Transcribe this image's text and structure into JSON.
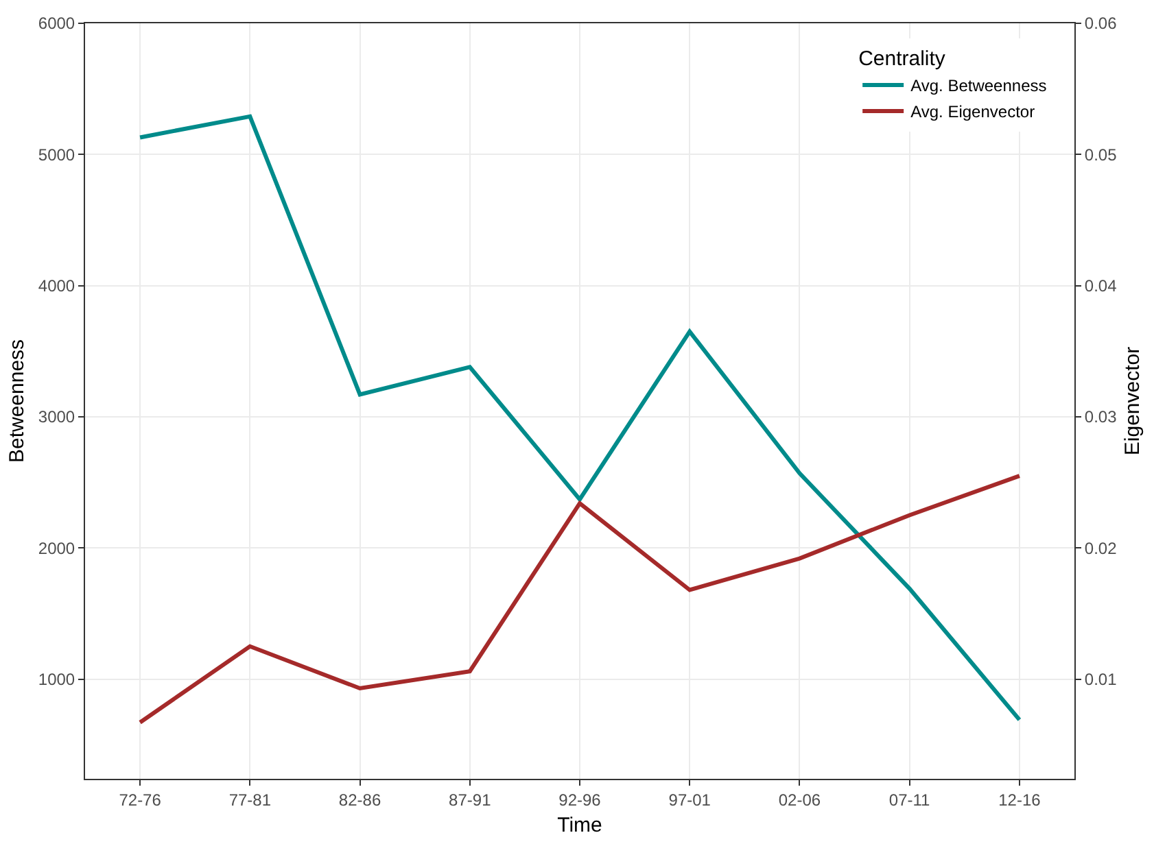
{
  "chart_data": {
    "type": "line",
    "xlabel": "Time",
    "ylabel": "Betweenness",
    "y2label": "Eigenvector",
    "legend_title": "Centrality",
    "categories": [
      "72-76",
      "77-81",
      "82-86",
      "87-91",
      "92-96",
      "97-01",
      "02-06",
      "07-11",
      "12-16"
    ],
    "series": [
      {
        "name": "Avg. Betweenness",
        "color": "#008b8b",
        "values": [
          5130,
          5290,
          3170,
          3380,
          2370,
          3650,
          2570,
          1690,
          690
        ]
      },
      {
        "name": "Avg. Eigenvector",
        "color": "#a52a2a",
        "axis": "y2",
        "values": [
          0.0067,
          0.0125,
          0.0093,
          0.0106,
          0.0234,
          0.0168,
          0.0192,
          0.0225,
          0.0255
        ]
      }
    ],
    "ylim": [
      240,
      6000
    ],
    "yticks": [
      1000,
      2000,
      3000,
      4000,
      5000,
      6000
    ],
    "y2lim": [
      0.0024,
      0.06
    ],
    "y2ticks": [
      0.01,
      0.02,
      0.03,
      0.04,
      0.05,
      0.06
    ],
    "grid": true,
    "legend": "top right",
    "marker": "none",
    "line_style": "solid"
  }
}
